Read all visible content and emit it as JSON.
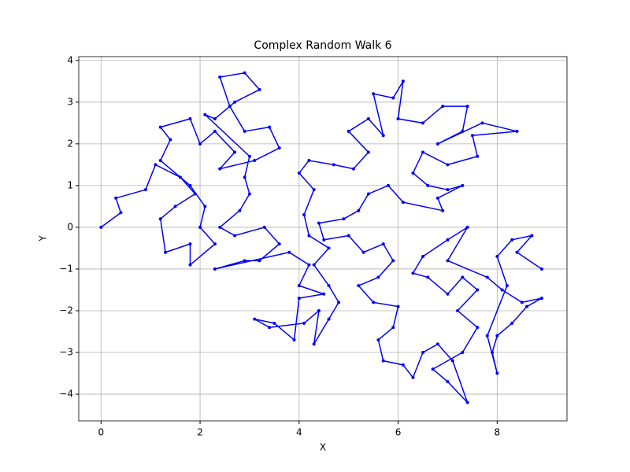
{
  "chart_data": {
    "type": "line",
    "title": "Complex Random Walk 6",
    "x_label": "X",
    "y_label": "Y",
    "xlim": [
      -0.45,
      9.41
    ],
    "ylim": [
      -4.64,
      4.09
    ],
    "xticks": [
      0,
      2,
      4,
      6,
      8
    ],
    "yticks": [
      {
        "value": -4,
        "label": "−4"
      },
      {
        "value": -3,
        "label": "−3"
      },
      {
        "value": -2,
        "label": "−2"
      },
      {
        "value": -1,
        "label": "−1"
      },
      0,
      1,
      2,
      3,
      4
    ],
    "grid": true,
    "series": [
      {
        "color": "#0000ff",
        "x": [
          0,
          0.4,
          0.3,
          0.9,
          1.1,
          1.6,
          1.9,
          1.5,
          1.2,
          1.3,
          1.8,
          1.8,
          2.3,
          2.0,
          2.1,
          1.8,
          1.2,
          1.4,
          1.2,
          1.8,
          2.0,
          2.3,
          2.7,
          2.4,
          3.1,
          3.6,
          3.4,
          2.9,
          2.6,
          2.4,
          2.9,
          3.2,
          2.7,
          2.3,
          2.1,
          3.0,
          2.9,
          3.0,
          2.8,
          2.4,
          2.7,
          3.3,
          3.6,
          3.2,
          2.9,
          2.3,
          3.8,
          4.2,
          4.0,
          4.5,
          4.0,
          3.9,
          3.5,
          3.1,
          3.4,
          4.1,
          4.4,
          4.3,
          4.6,
          4.8,
          4.6,
          4.3,
          4.6,
          4.2,
          4.1,
          4.3,
          4.0,
          4.2,
          4.7,
          5.1,
          5.4,
          5.0,
          5.4,
          5.7,
          5.5,
          5.9,
          6.1,
          6.0,
          6.5,
          6.9,
          7.4,
          7.3,
          6.8,
          7.7,
          8.4,
          7.5,
          7.6,
          7.0,
          6.5,
          6.3,
          6.6,
          7.0,
          7.3,
          6.8,
          6.9,
          6.1,
          5.8,
          5.4,
          5.2,
          4.9,
          4.4,
          4.5,
          5.0,
          5.3,
          5.7,
          5.9,
          5.6,
          5.2,
          5.5,
          6.0,
          5.9,
          5.6,
          5.7,
          6.1,
          6.3,
          6.5,
          6.8,
          7.1,
          7.4,
          7.0,
          6.7,
          7.3,
          7.6,
          7.2,
          7.6,
          7.3,
          7.0,
          6.6,
          6.3,
          6.5,
          7.0,
          7.4,
          7.0,
          7.8,
          8.1,
          8.5,
          8.9,
          8.6,
          8.3,
          8.0,
          7.9,
          8.0,
          7.8,
          8.2,
          8.0,
          8.3,
          8.7,
          8.4,
          8.9
        ],
        "values": [
          0,
          0.35,
          0.7,
          0.9,
          1.5,
          1.2,
          0.8,
          0.5,
          0.2,
          -0.6,
          -0.4,
          -0.9,
          -0.4,
          0.0,
          0.5,
          1.0,
          1.6,
          2.1,
          2.4,
          2.6,
          2.0,
          2.3,
          1.8,
          1.4,
          1.6,
          1.9,
          2.4,
          2.3,
          2.9,
          3.6,
          3.7,
          3.3,
          3.0,
          2.6,
          2.7,
          1.7,
          1.2,
          0.8,
          0.4,
          0.0,
          -0.2,
          0.0,
          -0.4,
          -0.8,
          -0.8,
          -1.0,
          -0.6,
          -0.9,
          -1.4,
          -1.6,
          -1.7,
          -2.7,
          -2.3,
          -2.2,
          -2.4,
          -2.3,
          -2.0,
          -2.8,
          -2.2,
          -1.8,
          -1.4,
          -0.9,
          -0.5,
          -0.2,
          0.3,
          0.9,
          1.3,
          1.6,
          1.5,
          1.4,
          1.8,
          2.3,
          2.6,
          2.2,
          3.2,
          3.1,
          3.5,
          2.6,
          2.5,
          2.9,
          2.9,
          2.3,
          2.0,
          2.5,
          2.3,
          2.2,
          1.7,
          1.5,
          1.8,
          1.3,
          1.0,
          0.9,
          1.0,
          0.7,
          0.4,
          0.6,
          1.0,
          0.8,
          0.4,
          0.2,
          0.1,
          -0.3,
          -0.2,
          -0.6,
          -0.4,
          -0.8,
          -1.2,
          -1.4,
          -1.8,
          -1.9,
          -2.4,
          -2.7,
          -3.2,
          -3.3,
          -3.6,
          -3.0,
          -2.8,
          -3.2,
          -4.2,
          -3.7,
          -3.4,
          -3.0,
          -2.4,
          -2.0,
          -1.5,
          -1.2,
          -1.6,
          -1.2,
          -1.1,
          -0.7,
          -0.3,
          0.0,
          -0.8,
          -1.2,
          -1.5,
          -1.8,
          -1.7,
          -1.9,
          -2.3,
          -2.6,
          -3.0,
          -3.5,
          -2.6,
          -1.4,
          -0.7,
          -0.3,
          -0.2,
          -0.6,
          -1.0
        ]
      }
    ]
  }
}
